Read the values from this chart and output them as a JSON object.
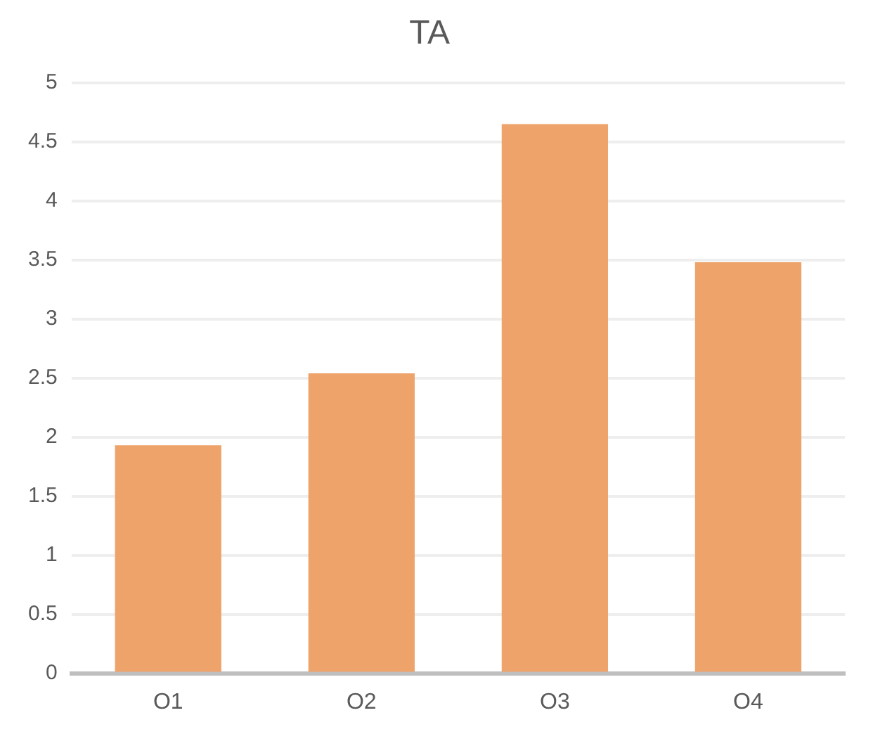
{
  "chart_data": {
    "type": "bar",
    "title": "TA",
    "categories": [
      "O1",
      "O2",
      "O3",
      "O4"
    ],
    "values": [
      1.93,
      2.54,
      4.65,
      3.48
    ],
    "color": "#eea36b",
    "ylim": [
      0,
      5
    ],
    "yticks": [
      0,
      0.5,
      1,
      1.5,
      2,
      2.5,
      3,
      3.5,
      4,
      4.5,
      5
    ],
    "grid": "y",
    "legend": false
  }
}
